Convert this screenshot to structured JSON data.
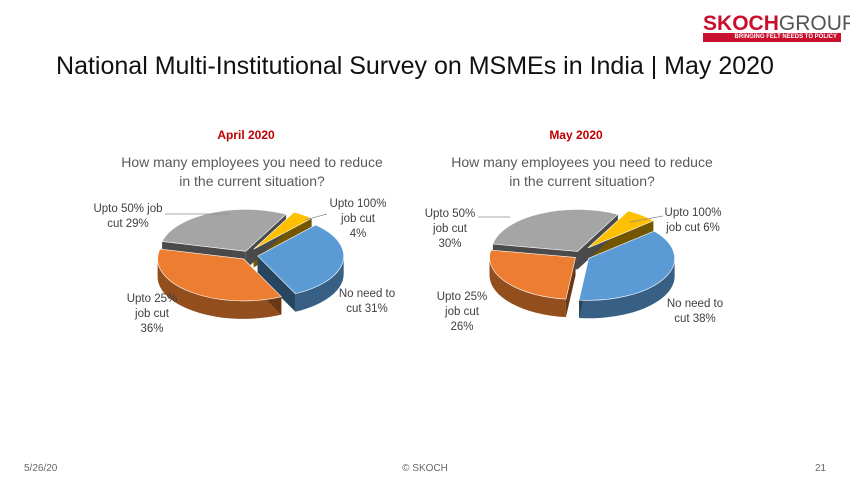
{
  "logo": {
    "name": "SKOCH GROUP",
    "tagline": "BRINGING FELT NEEDS TO POLICY"
  },
  "title": "National Multi-Institutional Survey on MSMEs in India | May 2020",
  "footer": {
    "date": "5/26/20",
    "copyright": "© SKOCH",
    "page": "21"
  },
  "colors": {
    "blue": "#5b9bd5",
    "orange": "#ed7d31",
    "gray": "#a5a5a5",
    "yellow": "#ffc000",
    "accent_red": "#c00000"
  },
  "chart_data": [
    {
      "type": "pie",
      "period": "April 2020",
      "question": "How many employees you need to reduce in the current situation?",
      "slices": [
        {
          "label": "No need to cut",
          "value": 31,
          "color": "#5b9bd5",
          "label_lines": [
            "No need to",
            "cut 31%"
          ]
        },
        {
          "label": "Upto 25% job cut",
          "value": 36,
          "color": "#ed7d31",
          "label_lines": [
            "Upto 25%",
            "job cut",
            "36%"
          ]
        },
        {
          "label": "Upto 50% job cut",
          "value": 29,
          "color": "#a5a5a5",
          "label_lines": [
            "Upto 50% job",
            "cut 29%"
          ]
        },
        {
          "label": "Upto 100% job cut",
          "value": 4,
          "color": "#ffc000",
          "label_lines": [
            "Upto 100%",
            "job cut",
            "4%"
          ]
        }
      ]
    },
    {
      "type": "pie",
      "period": "May 2020",
      "question": "How many employees you need to reduce in the current situation?",
      "slices": [
        {
          "label": "No need to cut",
          "value": 38,
          "color": "#5b9bd5",
          "label_lines": [
            "No need to",
            "cut 38%"
          ]
        },
        {
          "label": "Upto 25% job cut",
          "value": 26,
          "color": "#ed7d31",
          "label_lines": [
            "Upto 25%",
            "job cut",
            "26%"
          ]
        },
        {
          "label": "Upto 50% job cut",
          "value": 30,
          "color": "#a5a5a5",
          "label_lines": [
            "Upto 50%",
            "job cut",
            "30%"
          ]
        },
        {
          "label": "Upto 100% job cut",
          "value": 6,
          "color": "#ffc000",
          "label_lines": [
            "Upto 100%",
            "job cut 6%"
          ]
        }
      ]
    }
  ]
}
